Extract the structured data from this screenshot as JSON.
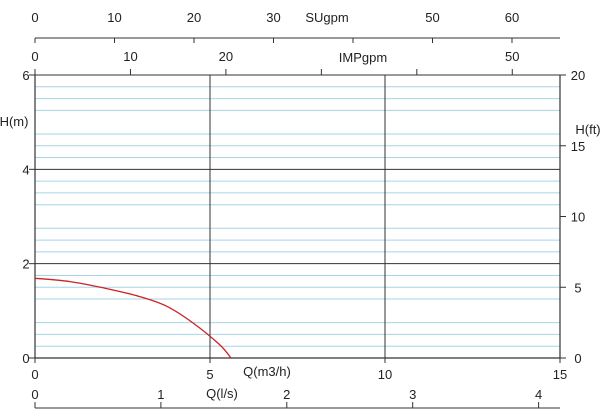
{
  "chart_data": {
    "type": "line",
    "title": "",
    "x_primary": {
      "label": "Q(m3/h)",
      "min": 0,
      "max": 15,
      "ticks": [
        0,
        5,
        10,
        15
      ]
    },
    "y_left": {
      "label": "H(m)",
      "min": 0,
      "max": 6,
      "ticks": [
        0,
        2,
        4,
        6
      ]
    },
    "y_right": {
      "label": "H(ft)",
      "min": 0,
      "max": 20,
      "ticks": [
        0,
        5,
        10,
        15,
        20
      ]
    },
    "x_top_usgpm": {
      "label": "SUgpm",
      "min": 0,
      "max": 66.04,
      "ticks": [
        0,
        10,
        20,
        30,
        40,
        50,
        60
      ],
      "tick_labels": [
        "0",
        "10",
        "20",
        "30",
        "",
        "50",
        "60"
      ]
    },
    "x_top_impgpm": {
      "label": "IMPgpm",
      "min": 0,
      "max": 55.0,
      "ticks": [
        0,
        10,
        20,
        30,
        40,
        50
      ],
      "tick_labels": [
        "0",
        "10",
        "20",
        "",
        "",
        "50"
      ]
    },
    "x_bottom_ls": {
      "label": "Q(l/s)",
      "min": 0,
      "max": 4.17,
      "ticks": [
        0,
        1,
        2,
        3,
        4
      ],
      "tick_labels": [
        "0",
        "1",
        "2",
        "3",
        "4"
      ]
    },
    "grid": true,
    "series": [
      {
        "x": [
          0,
          1,
          2,
          3,
          3.75,
          4.5,
          5.25,
          5.6
        ],
        "y": [
          1.69,
          1.62,
          1.48,
          1.3,
          1.1,
          0.75,
          0.3,
          0
        ]
      }
    ],
    "colors": {
      "curve": "#cc2222",
      "major_grid": "#333333",
      "minor_grid": "#a8d4e6",
      "axis": "#333333",
      "text": "#222222"
    }
  }
}
